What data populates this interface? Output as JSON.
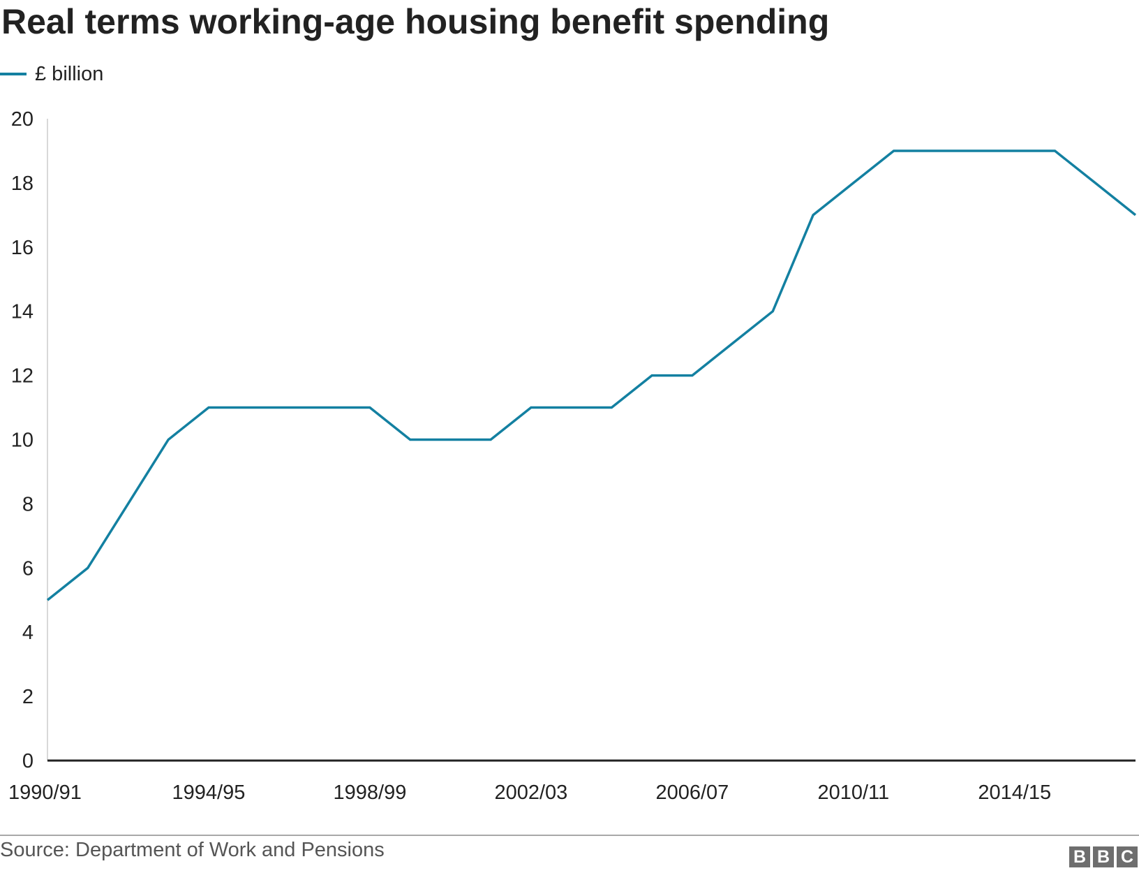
{
  "chart_data": {
    "type": "line",
    "title": "Real terms working-age housing benefit spending",
    "xlabel": "",
    "ylabel": "",
    "x": [
      "1990/91",
      "1991/92",
      "1992/93",
      "1993/94",
      "1994/95",
      "1995/96",
      "1996/97",
      "1997/98",
      "1998/99",
      "1999/00",
      "2000/01",
      "2001/02",
      "2002/03",
      "2003/04",
      "2004/05",
      "2005/06",
      "2006/07",
      "2007/08",
      "2008/09",
      "2009/10",
      "2010/11",
      "2011/12",
      "2012/13",
      "2013/14",
      "2014/15",
      "2015/16",
      "2016/17",
      "2017/18"
    ],
    "x_tick_labels": [
      "1990/91",
      "1994/95",
      "1998/99",
      "2002/03",
      "2006/07",
      "2010/11",
      "2014/15"
    ],
    "series": [
      {
        "name": "£ billion",
        "color": "#1380A1",
        "values": [
          5,
          6,
          8,
          10,
          11,
          11,
          11,
          11,
          11,
          10,
          10,
          10,
          11,
          11,
          11,
          12,
          12,
          13,
          14,
          17,
          18,
          19,
          19,
          19,
          19,
          19,
          18,
          17
        ]
      }
    ],
    "ylim": [
      0,
      20
    ],
    "y_ticks": [
      0,
      2,
      4,
      6,
      8,
      10,
      12,
      14,
      16,
      18,
      20
    ],
    "grid": false,
    "legend": "top-left"
  },
  "footer": {
    "source": "Source: Department of Work and Pensions",
    "logo_letters": [
      "B",
      "B",
      "C"
    ]
  }
}
